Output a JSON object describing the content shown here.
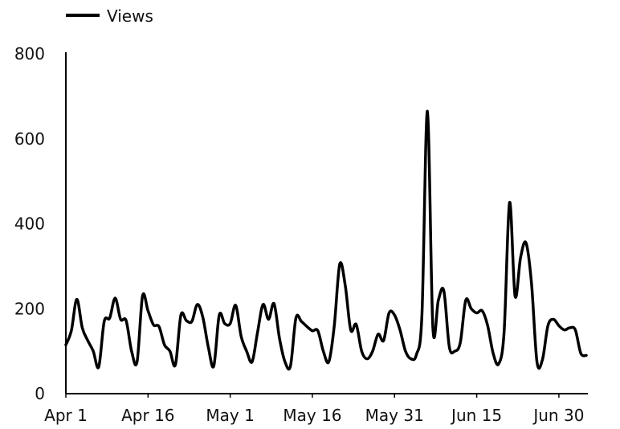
{
  "chart_data": {
    "type": "line",
    "title": "",
    "xlabel": "",
    "ylabel": "",
    "ylim": [
      0,
      800
    ],
    "yticks": [
      0,
      200,
      400,
      600,
      800
    ],
    "xtick_labels": [
      "Apr 1",
      "Apr 16",
      "May 1",
      "May 16",
      "May 31",
      "Jun 15",
      "Jun 30"
    ],
    "grid": false,
    "legend_position": "top-left",
    "x_start": "Apr 1",
    "x_end": "Jun 30",
    "series": [
      {
        "name": "Views",
        "color": "#000000",
        "values": [
          115,
          148,
          222,
          155,
          125,
          100,
          63,
          170,
          178,
          225,
          175,
          172,
          100,
          75,
          230,
          195,
          162,
          158,
          115,
          100,
          68,
          185,
          172,
          170,
          210,
          180,
          110,
          65,
          185,
          165,
          165,
          208,
          135,
          100,
          75,
          145,
          210,
          175,
          212,
          130,
          75,
          65,
          178,
          170,
          158,
          148,
          148,
          100,
          75,
          160,
          305,
          255,
          150,
          163,
          100,
          82,
          100,
          140,
          125,
          190,
          185,
          150,
          100,
          82,
          92,
          185,
          665,
          155,
          220,
          242,
          110,
          100,
          120,
          220,
          200,
          190,
          195,
          160,
          95,
          70,
          145,
          450,
          230,
          320,
          355,
          260,
          75,
          80,
          160,
          175,
          160,
          150,
          155,
          150,
          95,
          90
        ]
      }
    ]
  }
}
